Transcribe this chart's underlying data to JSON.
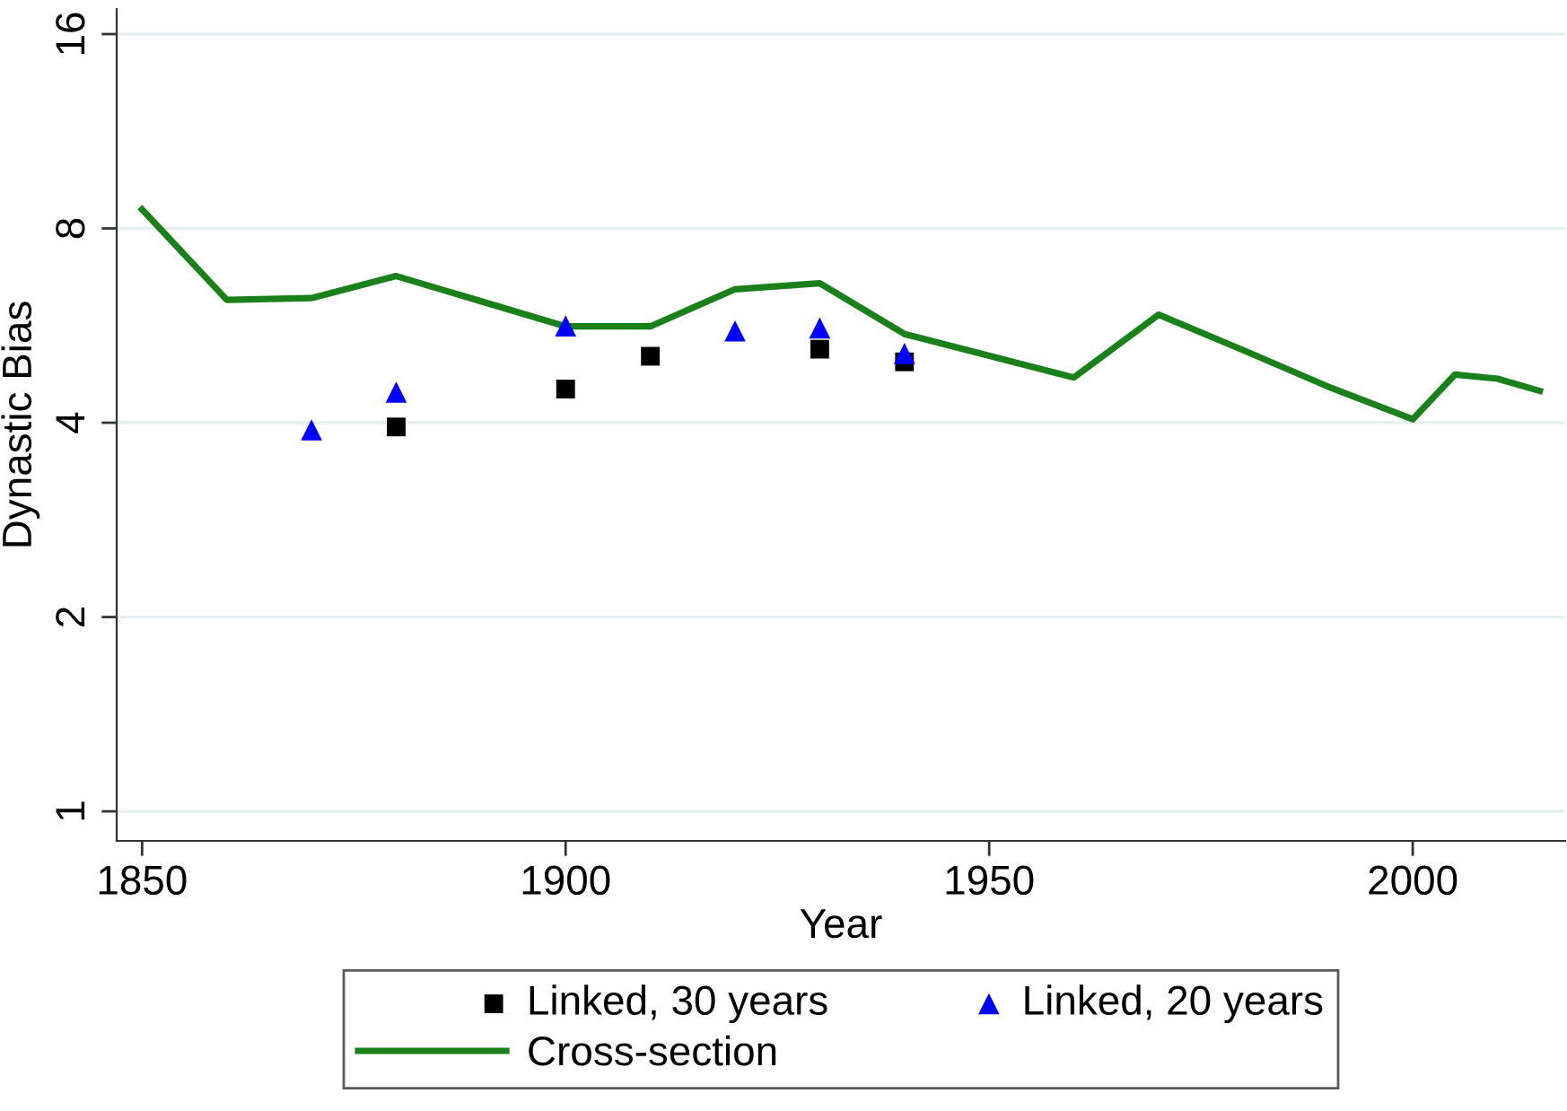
{
  "chart_data": {
    "type": "line",
    "xlabel": "Year",
    "ylabel": "Dynastic Bias",
    "xlim": [
      1847,
      2018
    ],
    "xticks": [
      1850,
      1900,
      1950,
      2000
    ],
    "ylim": [
      0.9,
      17.5
    ],
    "yticks": [
      1,
      2,
      4,
      8,
      16
    ],
    "log": "y",
    "grid": "y",
    "legend": "bottom",
    "series": [
      {
        "name": "Linked, 30 years",
        "type": "scatter",
        "marker": "square",
        "color": "#000000",
        "x": [
          1880,
          1900,
          1910,
          1930,
          1940
        ],
        "values": [
          3.94,
          4.51,
          5.07,
          5.2,
          4.97
        ]
      },
      {
        "name": "Linked, 20 years",
        "type": "scatter",
        "marker": "triangle",
        "color": "#0000ff",
        "x": [
          1870,
          1880,
          1900,
          1920,
          1930,
          1940
        ],
        "values": [
          3.9,
          4.46,
          5.65,
          5.55,
          5.61,
          5.12
        ]
      },
      {
        "name": "Cross-section",
        "marker": "none",
        "line_style": "solid",
        "color": "#1a801a",
        "x": [
          1850,
          1860,
          1870,
          1880,
          1900,
          1910,
          1920,
          1930,
          1940,
          1960,
          1970,
          1980,
          1990,
          2000,
          2005,
          2010,
          2015
        ],
        "values": [
          8.56,
          6.2,
          6.24,
          6.75,
          5.64,
          5.64,
          6.44,
          6.58,
          5.49,
          4.7,
          5.88,
          5.18,
          4.55,
          4.05,
          4.75,
          4.68,
          4.48
        ]
      }
    ]
  }
}
